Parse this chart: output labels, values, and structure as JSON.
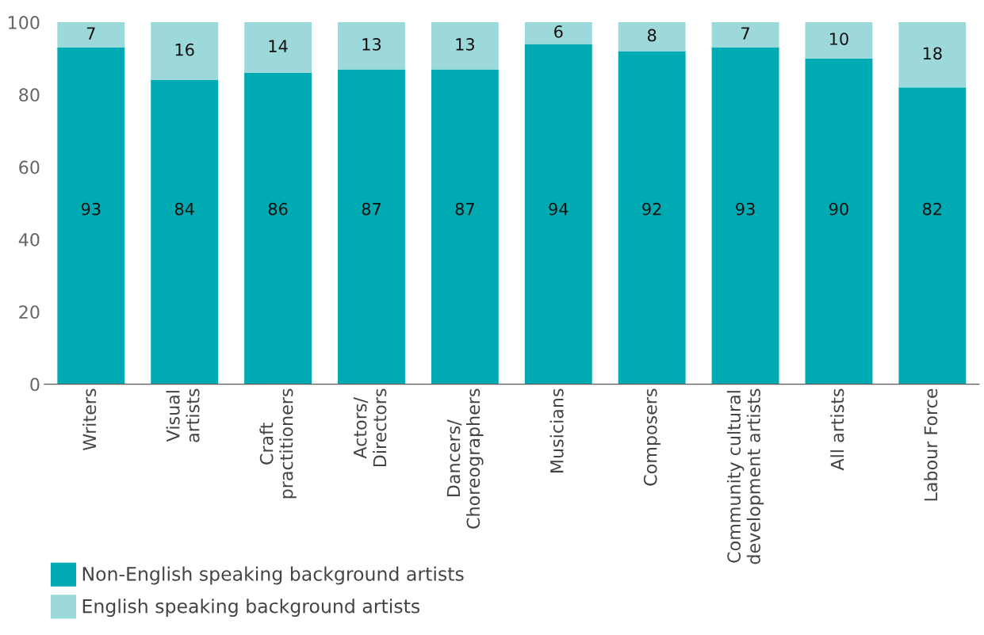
{
  "chart_data": {
    "type": "bar",
    "stacked": true,
    "categories": [
      "Writers",
      "Visual\nartists",
      "Craft\npractitioners",
      "Actors/\nDirectors",
      "Dancers/\nChoreographers",
      "Musicians",
      "Composers",
      "Community cultural\ndevelopment artists",
      "All artists",
      "Labour Force"
    ],
    "series": [
      {
        "name": "Non-English speaking background artists",
        "color": "#00aab2",
        "values": [
          93,
          84,
          86,
          87,
          87,
          94,
          92,
          93,
          90,
          82
        ]
      },
      {
        "name": "English speaking background artists",
        "color": "#9dd9db",
        "values": [
          7,
          16,
          14,
          13,
          13,
          6,
          8,
          7,
          10,
          18
        ]
      }
    ],
    "ylim": [
      0,
      100
    ],
    "yticks": [
      0,
      20,
      40,
      60,
      80,
      100
    ],
    "grid": false,
    "legend": "bottom left",
    "data_labels": true
  }
}
